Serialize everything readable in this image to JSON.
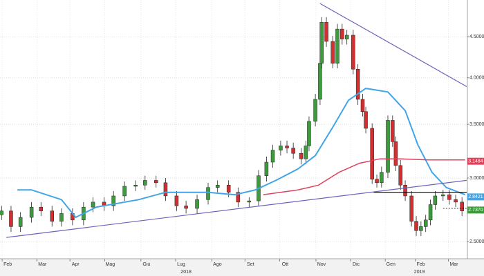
{
  "chart_data": {
    "type": "candlestick",
    "log_y": true,
    "grid": true,
    "up_color": "#3d9a3d",
    "down_color": "#d23030",
    "xlim": [
      0,
      296
    ],
    "ylim": [
      2.38,
      5.0
    ],
    "yticks": [
      {
        "value": 2.5,
        "label": "2.5000"
      },
      {
        "value": 3.0,
        "label": "3.0000"
      },
      {
        "value": 3.5,
        "label": "3.5000"
      },
      {
        "value": 4.0,
        "label": "4.0000"
      },
      {
        "value": 4.5,
        "label": "4.5000"
      }
    ],
    "xticks": [
      {
        "value": 4,
        "label": "Feb"
      },
      {
        "value": 26,
        "label": "Mar"
      },
      {
        "value": 47,
        "label": "Apr"
      },
      {
        "value": 69,
        "label": "Mag"
      },
      {
        "value": 92,
        "label": "Giu"
      },
      {
        "value": 114,
        "label": "Lug"
      },
      {
        "value": 137,
        "label": "Ago"
      },
      {
        "value": 158,
        "label": "Set"
      },
      {
        "value": 180,
        "label": "Ott"
      },
      {
        "value": 203,
        "label": "Nov"
      },
      {
        "value": 225,
        "label": "Dic"
      },
      {
        "value": 247,
        "label": "Gen"
      },
      {
        "value": 266,
        "label": "Feb"
      },
      {
        "value": 287,
        "label": "Mar"
      }
    ],
    "years": [
      {
        "value": 118,
        "label": "2018"
      },
      {
        "value": 266,
        "label": "2019"
      }
    ],
    "x": [
      1,
      7,
      13,
      20,
      26,
      33,
      39,
      46,
      53,
      59,
      66,
      72,
      79,
      86,
      92,
      99,
      105,
      112,
      118,
      125,
      132,
      138,
      145,
      151,
      158,
      164,
      169,
      173,
      178,
      182,
      186,
      191,
      194,
      196,
      200,
      203,
      204,
      207,
      211,
      214,
      217,
      220,
      224,
      227,
      230,
      232,
      236,
      239,
      242,
      246,
      249,
      251,
      254,
      257,
      261,
      264,
      267,
      270,
      273,
      276,
      281,
      285,
      289,
      293
    ],
    "open": [
      2.7,
      2.73,
      2.61,
      2.68,
      2.76,
      2.73,
      2.65,
      2.71,
      2.66,
      2.76,
      2.8,
      2.77,
      2.85,
      2.93,
      2.94,
      2.98,
      2.96,
      2.85,
      2.77,
      2.75,
      2.82,
      2.92,
      2.94,
      2.88,
      2.8,
      2.81,
      3.02,
      3.14,
      3.25,
      3.29,
      3.27,
      3.22,
      3.17,
      3.29,
      3.53,
      3.76,
      4.17,
      4.69,
      4.44,
      4.17,
      4.6,
      4.47,
      4.52,
      4.1,
      3.76,
      3.63,
      3.46,
      2.99,
      2.96,
      3.05,
      3.54,
      3.33,
      3.11,
      2.94,
      2.85,
      2.65,
      2.58,
      2.61,
      2.66,
      2.78,
      2.85,
      2.86,
      2.82,
      2.8
    ],
    "high": [
      2.77,
      2.77,
      2.72,
      2.8,
      2.8,
      2.77,
      2.75,
      2.75,
      2.8,
      2.84,
      2.84,
      2.89,
      2.97,
      2.98,
      3.02,
      3.02,
      3.0,
      2.89,
      2.81,
      2.86,
      2.96,
      2.98,
      2.98,
      2.92,
      2.84,
      3.07,
      3.19,
      3.3,
      3.34,
      3.34,
      3.32,
      3.27,
      3.34,
      3.58,
      3.82,
      4.23,
      4.76,
      4.76,
      4.51,
      4.67,
      4.67,
      4.59,
      4.59,
      4.16,
      3.82,
      3.68,
      3.51,
      3.03,
      3.1,
      3.59,
      3.59,
      3.38,
      3.16,
      2.98,
      2.89,
      2.69,
      2.65,
      2.7,
      2.82,
      2.89,
      2.9,
      2.9,
      2.86,
      2.84
    ],
    "low": [
      2.66,
      2.57,
      2.57,
      2.64,
      2.69,
      2.61,
      2.61,
      2.62,
      2.62,
      2.72,
      2.73,
      2.73,
      2.81,
      2.89,
      2.9,
      2.92,
      2.81,
      2.73,
      2.71,
      2.71,
      2.78,
      2.88,
      2.84,
      2.76,
      2.76,
      2.77,
      2.97,
      3.09,
      3.2,
      3.22,
      3.17,
      3.12,
      3.12,
      3.24,
      3.48,
      3.7,
      4.11,
      4.37,
      4.11,
      4.11,
      4.4,
      4.4,
      4.04,
      3.7,
      3.58,
      3.41,
      2.95,
      2.92,
      2.92,
      3.0,
      3.28,
      3.06,
      2.9,
      2.81,
      2.61,
      2.54,
      2.54,
      2.57,
      2.62,
      2.74,
      2.81,
      2.78,
      2.76,
      2.69
    ],
    "close": [
      2.73,
      2.61,
      2.68,
      2.76,
      2.73,
      2.65,
      2.71,
      2.66,
      2.76,
      2.8,
      2.77,
      2.85,
      2.93,
      2.94,
      2.98,
      2.96,
      2.85,
      2.77,
      2.75,
      2.82,
      2.92,
      2.94,
      2.88,
      2.8,
      2.81,
      3.02,
      3.14,
      3.25,
      3.29,
      3.27,
      3.22,
      3.17,
      3.29,
      3.53,
      3.76,
      4.17,
      4.69,
      4.44,
      4.17,
      4.6,
      4.47,
      4.52,
      4.1,
      3.76,
      3.63,
      3.46,
      2.99,
      2.96,
      3.05,
      3.54,
      3.33,
      3.11,
      2.94,
      2.85,
      2.65,
      2.58,
      2.61,
      2.66,
      2.78,
      2.85,
      2.86,
      2.82,
      2.8,
      2.73
    ],
    "lines": [
      {
        "color": "#3fa5e8",
        "width": 2,
        "x": [
          11,
          20,
          39,
          48,
          61,
          88,
          105,
          132,
          149,
          162,
          175,
          189,
          200,
          211,
          221,
          232,
          246,
          257,
          265,
          274,
          283,
          295
        ],
        "values": [
          2.9,
          2.9,
          2.82,
          2.68,
          2.76,
          2.82,
          2.88,
          2.88,
          2.86,
          2.9,
          2.98,
          3.08,
          3.2,
          3.47,
          3.75,
          3.88,
          3.84,
          3.64,
          3.3,
          3.05,
          2.92,
          2.86
        ]
      },
      {
        "color": "#e0405a",
        "width": 1.5,
        "x": [
          167,
          189,
          202,
          215,
          228,
          241,
          254,
          272,
          295
        ],
        "values": [
          2.86,
          2.9,
          2.94,
          3.05,
          3.13,
          3.17,
          3.17,
          3.16,
          3.16
        ]
      },
      {
        "color": "#6a64b8",
        "width": 1.2,
        "x": [
          4,
          296
        ],
        "values": [
          2.53,
          2.98
        ]
      },
      {
        "color": "#6a64b8",
        "width": 1.2,
        "x": [
          203,
          296
        ],
        "values": [
          4.95,
          3.9
        ]
      },
      {
        "color": "#000000",
        "width": 1.2,
        "x": [
          237,
          296
        ],
        "values": [
          2.88,
          2.88
        ]
      },
      {
        "color": "#000000",
        "width": 0.8,
        "dash": true,
        "x": [
          281,
          296
        ],
        "values": [
          2.75,
          2.75
        ]
      }
    ],
    "last_labels": [
      {
        "value": 3.1484,
        "label": "3.1484",
        "color": "#e0405a"
      },
      {
        "value": 2.8421,
        "label": "2.8421",
        "color": "#3fa5e8"
      },
      {
        "value": 2.737,
        "label": "2.7370",
        "color": "#3d9a3d"
      }
    ]
  }
}
